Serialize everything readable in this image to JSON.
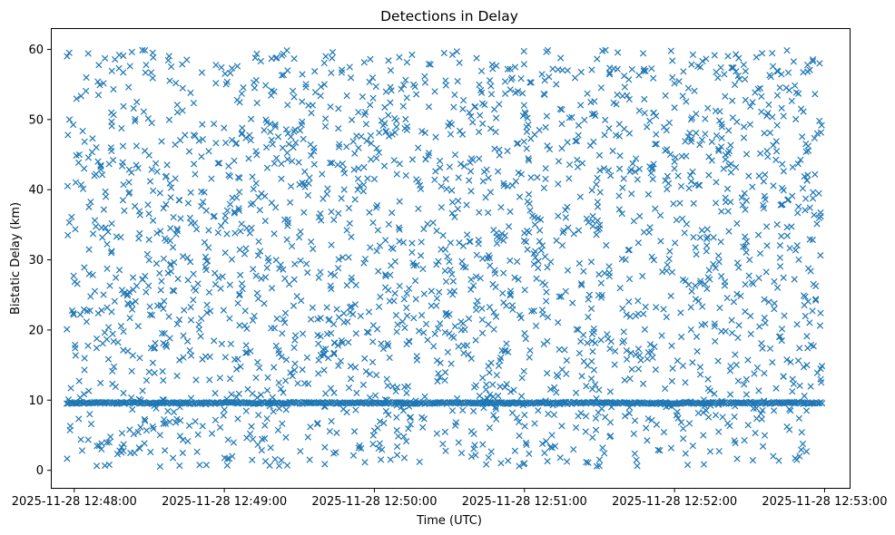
{
  "chart_data": {
    "type": "scatter",
    "title": "Detections in Delay",
    "xlabel": "Time (UTC)",
    "ylabel": "Bistatic Delay (km)",
    "x_axis_type": "datetime",
    "xlim": [
      "2025-11-28 12:47:51",
      "2025-11-28 12:53:10"
    ],
    "ylim": [
      -2.5,
      62.9
    ],
    "x_ticks": [
      "2025-11-28 12:48:00",
      "2025-11-28 12:49:00",
      "2025-11-28 12:50:00",
      "2025-11-28 12:51:00",
      "2025-11-28 12:52:00",
      "2025-11-28 12:53:00"
    ],
    "y_ticks": [
      0,
      10,
      20,
      30,
      40,
      50,
      60
    ],
    "marker": "x",
    "color": "#1f77b4",
    "grid": false,
    "legend": false,
    "time_range": [
      "2025-11-28 12:47:57",
      "2025-11-28 12:52:59"
    ],
    "delay_range": [
      0.5,
      59.9
    ],
    "dense_band_delay": 9.6,
    "sample_points": [
      {
        "t": "2025-11-28 12:47:58",
        "y": 59.5
      },
      {
        "t": "2025-11-28 12:48:02",
        "y": 45.0
      },
      {
        "t": "2025-11-28 12:48:06",
        "y": 28.0
      },
      {
        "t": "2025-11-28 12:48:10",
        "y": 3.5
      },
      {
        "t": "2025-11-28 12:48:14",
        "y": 0.8
      },
      {
        "t": "2025-11-28 12:48:20",
        "y": 37.0
      },
      {
        "t": "2025-11-28 12:48:31",
        "y": 49.5
      },
      {
        "t": "2025-11-28 12:48:45",
        "y": 58.5
      },
      {
        "t": "2025-11-28 12:49:12",
        "y": 22.0
      },
      {
        "t": "2025-11-28 12:49:40",
        "y": 55.0
      },
      {
        "t": "2025-11-28 12:50:05",
        "y": 13.0
      },
      {
        "t": "2025-11-28 12:50:33",
        "y": 59.7
      },
      {
        "t": "2025-11-28 12:51:02",
        "y": 38.0
      },
      {
        "t": "2025-11-28 12:51:30",
        "y": 1.5
      },
      {
        "t": "2025-11-28 12:52:00",
        "y": 44.0
      },
      {
        "t": "2025-11-28 12:52:30",
        "y": 30.0
      },
      {
        "t": "2025-11-28 12:52:50",
        "y": 2.0
      },
      {
        "t": "2025-11-28 12:52:58",
        "y": 58.0
      }
    ]
  }
}
